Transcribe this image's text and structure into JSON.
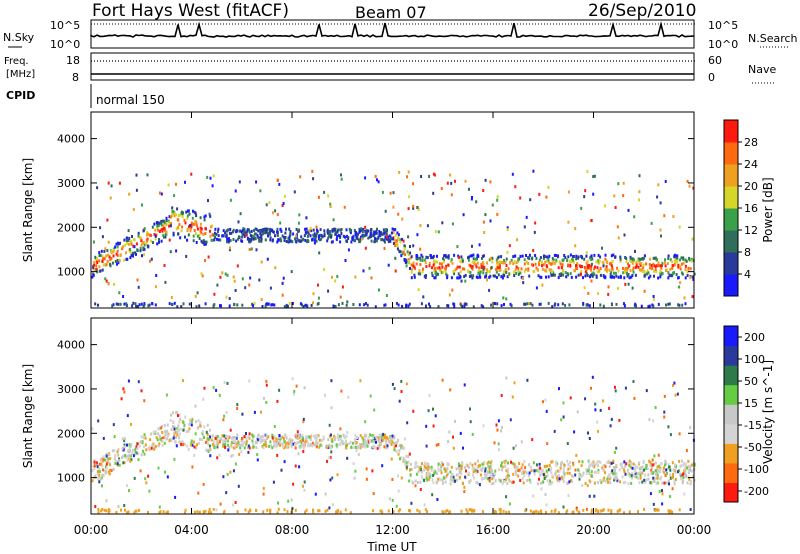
{
  "header": {
    "station": "Fort Hays West (fitACF)",
    "beam": "Beam 07",
    "date": "26/Sep/2010"
  },
  "strip_nsky": {
    "left_label": "N.Sky",
    "right_label": "N.Search",
    "ticks": [
      "10^5",
      "10^0"
    ]
  },
  "strip_freq": {
    "left_label_1": "Freq.",
    "left_label_2": "[MHz]",
    "right_label": "Nave",
    "left_ticks": [
      "18",
      "8"
    ],
    "right_ticks": [
      "60",
      "0"
    ]
  },
  "strip_cpid": {
    "label": "CPID",
    "mode": "normal 150"
  },
  "colors": {
    "power_scale": [
      "#1a1aff",
      "#2a3a9a",
      "#2f6e5a",
      "#3aa04a",
      "#d6d62a",
      "#f0a020",
      "#ff6a10",
      "#ff1a10"
    ],
    "velocity_scale": [
      "#ff1a10",
      "#ff6a10",
      "#f0a020",
      "#d4d4d4",
      "#c8c8c8",
      "#66cc44",
      "#2f7a4a",
      "#2a3a9a",
      "#1a1aff"
    ]
  },
  "chart_data": [
    {
      "type": "heatmap",
      "name": "power-panel",
      "xlabel": "",
      "ylabel": "Slant Range [km]",
      "x_ticks": [
        "00:00",
        "04:00",
        "08:00",
        "12:00",
        "16:00",
        "20:00",
        "00:00"
      ],
      "y_ticks": [
        "1000",
        "2000",
        "3000",
        "4000"
      ],
      "ylim": [
        180,
        4600
      ],
      "colorbar": {
        "label": "Power [dB]",
        "ticks": [
          "4",
          "8",
          "12",
          "16",
          "20",
          "24",
          "28"
        ],
        "range": [
          0,
          30
        ]
      }
    },
    {
      "type": "heatmap",
      "name": "velocity-panel",
      "xlabel": "Time UT",
      "ylabel": "Slant Range [km]",
      "x_ticks": [
        "00:00",
        "04:00",
        "08:00",
        "12:00",
        "16:00",
        "20:00",
        "00:00"
      ],
      "y_ticks": [
        "1000",
        "2000",
        "3000",
        "4000"
      ],
      "ylim": [
        180,
        4600
      ],
      "colorbar": {
        "label": "Velocity [m s^-1]",
        "ticks": [
          "200",
          "100",
          "50",
          "15",
          "-15",
          "-50",
          "-100",
          "-200"
        ],
        "range": [
          -250,
          250
        ]
      }
    }
  ]
}
